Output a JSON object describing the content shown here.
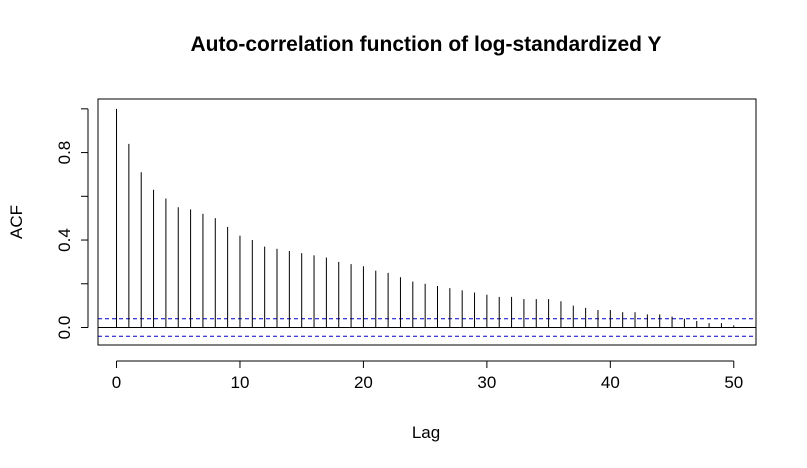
{
  "chart_data": {
    "type": "bar",
    "title": "Auto-correlation function of log-standardized Y",
    "xlabel": "Lag",
    "ylabel": "ACF",
    "xlim": [
      -1.5,
      51.8
    ],
    "ylim": [
      -0.08,
      1.045
    ],
    "x_ticks": [
      0,
      10,
      20,
      30,
      40,
      50
    ],
    "x_tick_labels": [
      "0",
      "10",
      "20",
      "30",
      "40",
      "50"
    ],
    "y_ticks": [
      0.0,
      0.4,
      0.8
    ],
    "y_tick_labels": [
      "0.0",
      "0.4",
      "0.8"
    ],
    "y_minor_ticks": [
      0.2,
      0.6,
      1.0
    ],
    "confidence_band": 0.04,
    "colors": {
      "bars": "#000000",
      "band": "#0000cc",
      "axis": "#000000"
    },
    "lags": [
      0,
      1,
      2,
      3,
      4,
      5,
      6,
      7,
      8,
      9,
      10,
      11,
      12,
      13,
      14,
      15,
      16,
      17,
      18,
      19,
      20,
      21,
      22,
      23,
      24,
      25,
      26,
      27,
      28,
      29,
      30,
      31,
      32,
      33,
      34,
      35,
      36,
      37,
      38,
      39,
      40,
      41,
      42,
      43,
      44,
      45,
      46,
      47,
      48,
      49,
      50
    ],
    "values": [
      1.0,
      0.84,
      0.71,
      0.63,
      0.59,
      0.55,
      0.54,
      0.52,
      0.5,
      0.46,
      0.42,
      0.4,
      0.37,
      0.36,
      0.35,
      0.34,
      0.33,
      0.32,
      0.3,
      0.29,
      0.28,
      0.26,
      0.25,
      0.23,
      0.21,
      0.2,
      0.19,
      0.18,
      0.17,
      0.16,
      0.15,
      0.14,
      0.14,
      0.13,
      0.13,
      0.13,
      0.12,
      0.1,
      0.09,
      0.08,
      0.08,
      0.07,
      0.07,
      0.06,
      0.06,
      0.05,
      0.04,
      0.03,
      0.02,
      0.02,
      0.01
    ]
  }
}
